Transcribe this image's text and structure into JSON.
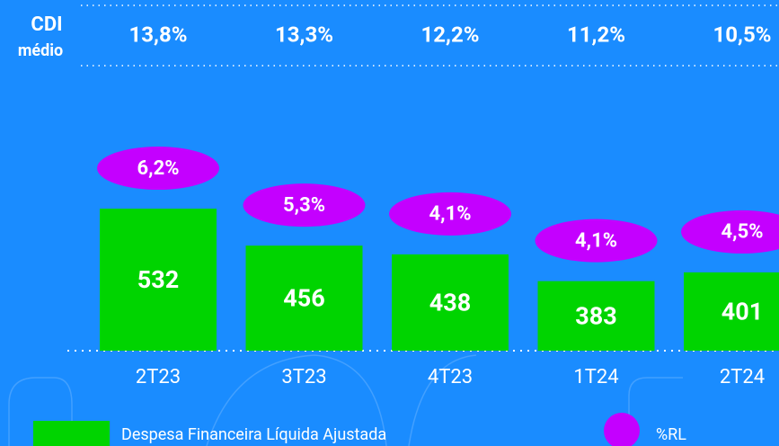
{
  "chart_data": {
    "type": "bar",
    "cdi_label": [
      "CDI",
      "médio"
    ],
    "cdi_values": [
      13.8,
      13.3,
      12.2,
      11.2,
      10.5
    ],
    "cdi_value_labels": [
      "13,8%",
      "13,3%",
      "12,2%",
      "11,2%",
      "10,5%"
    ],
    "categories": [
      "2T23",
      "3T23",
      "4T23",
      "1T24",
      "2T24"
    ],
    "ylim": [
      240,
      850
    ],
    "series": [
      {
        "name": "Despesa Financeira Líquida Ajustada",
        "color": "#00d400",
        "values": [
          532,
          456,
          438,
          383,
          401
        ]
      },
      {
        "name": "%RL",
        "color": "#c400ff",
        "values": [
          6.2,
          5.3,
          4.1,
          4.1,
          4.5
        ],
        "value_labels": [
          "6,2%",
          "5,3%",
          "4,1%",
          "4,1%",
          "4,5%"
        ]
      }
    ]
  }
}
